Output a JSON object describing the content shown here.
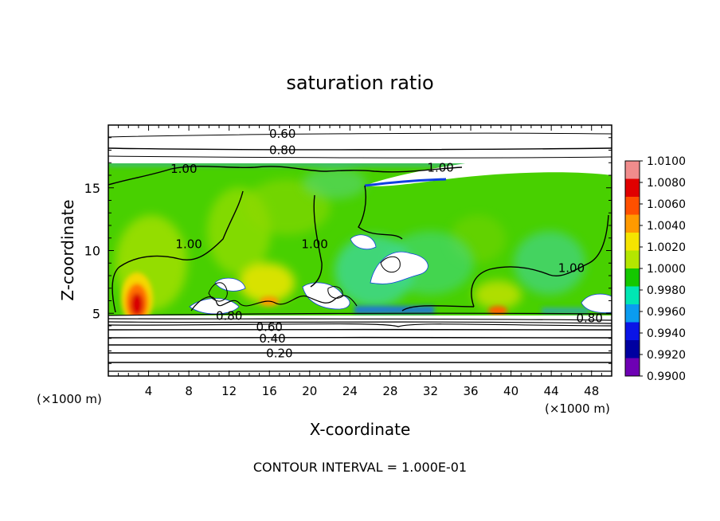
{
  "chart_data": {
    "type": "heatmap",
    "title": "saturation ratio",
    "xlabel": "X-coordinate",
    "ylabel": "Z-coordinate",
    "x_unit": "(×1000 m)",
    "x_unit_right": "(×1000 m)",
    "xlim": [
      0,
      50
    ],
    "ylim": [
      0,
      20
    ],
    "xticks": [
      4,
      8,
      12,
      16,
      20,
      24,
      28,
      32,
      36,
      40,
      44,
      48
    ],
    "yticks": [
      5,
      10,
      15
    ],
    "footer": "CONTOUR INTERVAL = 1.000E-01",
    "colorbar": {
      "levels": [
        "1.0100",
        "1.0080",
        "1.0060",
        "1.0040",
        "1.0020",
        "1.0000",
        "0.9980",
        "0.9960",
        "0.9940",
        "0.9920",
        "0.9900"
      ],
      "colors": [
        "#f08c8c",
        "#e00000",
        "#ff5000",
        "#ff9a00",
        "#f5e400",
        "#b4e600",
        "#14c800",
        "#00e6b4",
        "#0a9cf0",
        "#0a14e6",
        "#0000a0",
        "#6e00b4"
      ]
    },
    "contour_labels": [
      {
        "text": "0.60",
        "x": 17.3,
        "y": 19.3
      },
      {
        "text": "0.80",
        "x": 17.3,
        "y": 18.0
      },
      {
        "text": "1.00",
        "x": 7.5,
        "y": 16.5
      },
      {
        "text": "1.00",
        "x": 33.0,
        "y": 16.6
      },
      {
        "text": "1.00",
        "x": 8.0,
        "y": 10.5
      },
      {
        "text": "1.00",
        "x": 20.5,
        "y": 10.5
      },
      {
        "text": "1.00",
        "x": 46.0,
        "y": 8.6
      },
      {
        "text": "0.60",
        "x": 16.0,
        "y": 3.9
      },
      {
        "text": "0.40",
        "x": 16.3,
        "y": 3.0
      },
      {
        "text": "0.20",
        "x": 17.0,
        "y": 1.8
      },
      {
        "text": "0.80",
        "x": 47.8,
        "y": 4.6
      },
      {
        "text": "0.80",
        "x": 12.0,
        "y": 4.8
      }
    ]
  }
}
